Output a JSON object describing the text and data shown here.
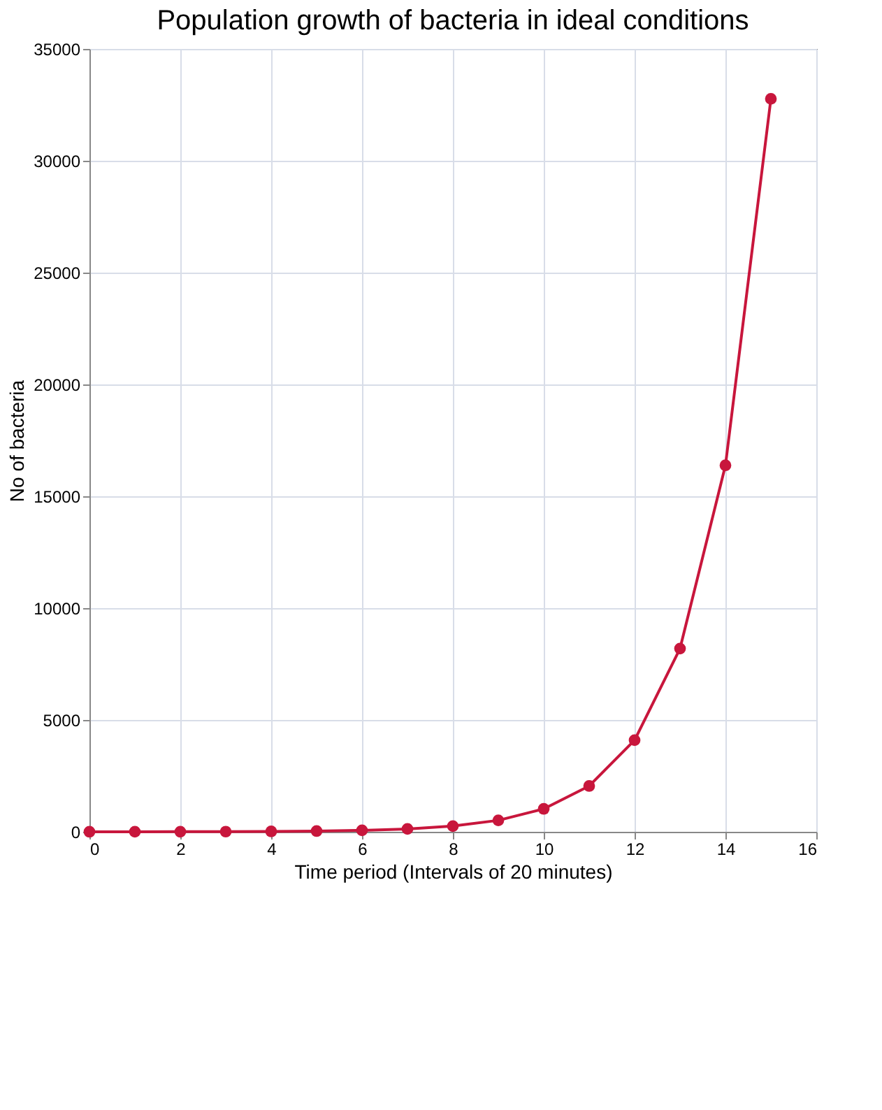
{
  "chart_data": {
    "type": "line",
    "title": "Population growth of bacteria in ideal conditions",
    "xlabel": "Time period (Intervals of 20 minutes)",
    "ylabel": "No of bacteria",
    "x": [
      0,
      1,
      2,
      3,
      4,
      5,
      6,
      7,
      8,
      9,
      10,
      11,
      12,
      13,
      14,
      15
    ],
    "series": [
      {
        "color": "#c8163c",
        "values": [
          1,
          2,
          4,
          8,
          16,
          32,
          64,
          128,
          256,
          512,
          1024,
          2048,
          4096,
          8192,
          16384,
          32768
        ]
      }
    ],
    "xlim": [
      0,
      16
    ],
    "xticks": [
      0,
      2,
      4,
      6,
      8,
      10,
      12,
      14,
      16
    ],
    "ylim": [
      0,
      35000
    ],
    "yticks": [
      0,
      5000,
      10000,
      15000,
      20000,
      25000,
      30000,
      35000
    ],
    "grid": true,
    "marker": "circle",
    "line_style": "solid"
  }
}
